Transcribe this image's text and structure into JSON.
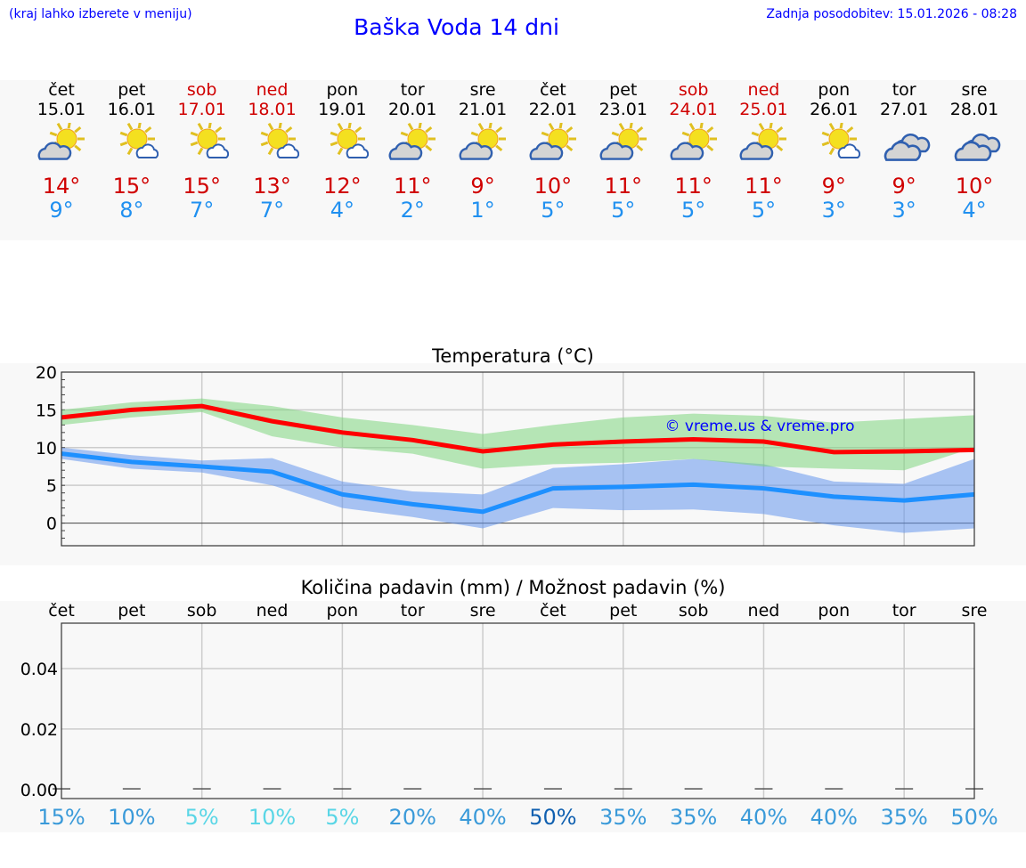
{
  "header": {
    "hint": "(kraj lahko izberete v meniju)",
    "title": "Baška Voda 14 dni",
    "updated": "Zadnja posodobitev: 15.01.2026 - 08:28"
  },
  "days": [
    {
      "name": "čet",
      "date": "15.01",
      "weekend": false,
      "icon": "partly-cloudy-gray-icon",
      "max": "14°",
      "min": "9°"
    },
    {
      "name": "pet",
      "date": "16.01",
      "weekend": false,
      "icon": "sun-small-cloud-icon",
      "max": "15°",
      "min": "8°"
    },
    {
      "name": "sob",
      "date": "17.01",
      "weekend": true,
      "icon": "sun-small-cloud-icon",
      "max": "15°",
      "min": "7°"
    },
    {
      "name": "ned",
      "date": "18.01",
      "weekend": true,
      "icon": "sun-small-cloud-icon",
      "max": "13°",
      "min": "7°"
    },
    {
      "name": "pon",
      "date": "19.01",
      "weekend": false,
      "icon": "sun-small-cloud-icon",
      "max": "12°",
      "min": "4°"
    },
    {
      "name": "tor",
      "date": "20.01",
      "weekend": false,
      "icon": "partly-cloudy-gray-icon",
      "max": "11°",
      "min": "2°"
    },
    {
      "name": "sre",
      "date": "21.01",
      "weekend": false,
      "icon": "partly-cloudy-gray-icon",
      "max": "9°",
      "min": "1°"
    },
    {
      "name": "čet",
      "date": "22.01",
      "weekend": false,
      "icon": "partly-cloudy-gray-icon",
      "max": "10°",
      "min": "5°"
    },
    {
      "name": "pet",
      "date": "23.01",
      "weekend": false,
      "icon": "partly-cloudy-gray-icon",
      "max": "11°",
      "min": "5°"
    },
    {
      "name": "sob",
      "date": "24.01",
      "weekend": true,
      "icon": "partly-cloudy-gray-icon",
      "max": "11°",
      "min": "5°"
    },
    {
      "name": "ned",
      "date": "25.01",
      "weekend": true,
      "icon": "partly-cloudy-gray-icon",
      "max": "11°",
      "min": "5°"
    },
    {
      "name": "pon",
      "date": "26.01",
      "weekend": false,
      "icon": "sun-small-cloud-icon",
      "max": "9°",
      "min": "3°"
    },
    {
      "name": "tor",
      "date": "27.01",
      "weekend": false,
      "icon": "cloudy-icon",
      "max": "9°",
      "min": "3°"
    },
    {
      "name": "sre",
      "date": "28.01",
      "weekend": false,
      "icon": "cloudy-icon",
      "max": "10°",
      "min": "4°"
    }
  ],
  "chart_data": [
    {
      "type": "line",
      "title": "Temperatura (°C)",
      "ylim": [
        -3,
        20
      ],
      "yticks": [
        "20",
        "15",
        "10",
        "5",
        "0"
      ],
      "watermark": "© vreme.us & vreme.pro",
      "series": [
        {
          "name": "max",
          "color": "#ff0000",
          "values": [
            14,
            15,
            15.5,
            13.5,
            12,
            11,
            9.5,
            10.4,
            10.8,
            11.1,
            10.8,
            9.4,
            9.5,
            9.7
          ],
          "band_upper": [
            15,
            16,
            16.5,
            15.5,
            14,
            13,
            11.8,
            13,
            14,
            14.5,
            14.2,
            13.3,
            13.8,
            14.3
          ],
          "band_lower": [
            13,
            14,
            14.7,
            11.5,
            10,
            9.2,
            7.2,
            7.8,
            8,
            8.5,
            7.5,
            7.2,
            7,
            10
          ],
          "band_color": "#7ed67e"
        },
        {
          "name": "min",
          "color": "#1e90ff",
          "values": [
            9.2,
            8.1,
            7.5,
            6.8,
            3.8,
            2.5,
            1.5,
            4.6,
            4.8,
            5.1,
            4.6,
            3.5,
            3,
            3.8
          ],
          "band_upper": [
            10,
            9,
            8.3,
            8.6,
            5.5,
            4.2,
            3.8,
            7.3,
            7.8,
            8.5,
            7.8,
            5.5,
            5.2,
            8.5
          ],
          "band_lower": [
            8.5,
            7.2,
            6.7,
            5,
            2,
            0.8,
            -0.7,
            2,
            1.7,
            1.8,
            1.2,
            -0.3,
            -1.3,
            -0.7
          ],
          "band_color": "#6495ed"
        }
      ]
    },
    {
      "type": "bar",
      "title": "Količina padavin (mm) / Možnost padavin (%)",
      "ylim": [
        -0.003,
        0.055
      ],
      "yticks": [
        "0.04",
        "0.02",
        "0.00"
      ],
      "categories": [
        "čet",
        "pet",
        "sob",
        "ned",
        "pon",
        "tor",
        "sre",
        "čet",
        "pet",
        "sob",
        "ned",
        "pon",
        "tor",
        "sre"
      ],
      "values": [
        0,
        0,
        0,
        0,
        0,
        0,
        0,
        0,
        0,
        0,
        0,
        0,
        0,
        0
      ],
      "probability": [
        "15%",
        "10%",
        "5%",
        "10%",
        "5%",
        "20%",
        "40%",
        "50%",
        "35%",
        "35%",
        "40%",
        "40%",
        "35%",
        "50%"
      ],
      "probability_colors": [
        "#3a9ad9",
        "#3a9ad9",
        "#5ad6e6",
        "#5ad6e6",
        "#5ad6e6",
        "#3a9ad9",
        "#3a9ad9",
        "#1060b0",
        "#3a9ad9",
        "#3a9ad9",
        "#3a9ad9",
        "#3a9ad9",
        "#3a9ad9",
        "#3a9ad9"
      ]
    }
  ]
}
